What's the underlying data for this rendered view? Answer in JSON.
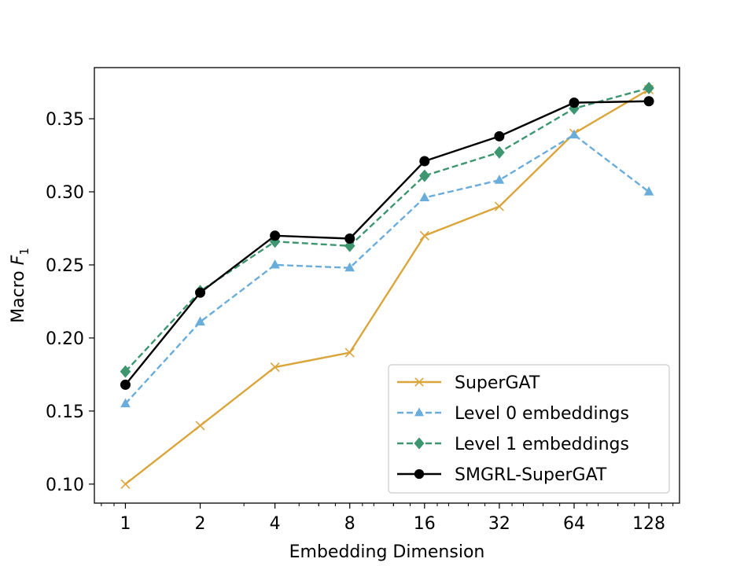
{
  "chart_data": {
    "type": "line",
    "title": "",
    "xlabel": "Embedding Dimension",
    "ylabel": "Macro",
    "ylabel_symbol": "F",
    "ylabel_subscript": "1",
    "x_scale": "log2",
    "categories": [
      "1",
      "2",
      "4",
      "8",
      "16",
      "32",
      "64",
      "128"
    ],
    "x": [
      1,
      2,
      4,
      8,
      16,
      32,
      64,
      128
    ],
    "xlim": [
      0.75,
      170
    ],
    "ylim": [
      0.087,
      0.385
    ],
    "yticks": [
      0.1,
      0.15,
      0.2,
      0.25,
      0.3,
      0.35
    ],
    "ytick_labels": [
      "0.10",
      "0.15",
      "0.20",
      "0.25",
      "0.30",
      "0.35"
    ],
    "grid": false,
    "legend_position": "lower-right",
    "series": [
      {
        "name": "SuperGAT",
        "color": "#DAA53A",
        "linestyle": "solid",
        "marker": "x",
        "values": [
          0.1,
          0.14,
          0.18,
          0.19,
          0.27,
          0.29,
          0.34,
          0.37
        ]
      },
      {
        "name": "Level 0 embeddings",
        "color": "#6AADDB",
        "linestyle": "dashed",
        "marker": "triangle",
        "values": [
          0.155,
          0.211,
          0.25,
          0.248,
          0.296,
          0.308,
          0.339,
          0.3
        ]
      },
      {
        "name": "Level 1 embeddings",
        "color": "#3D9670",
        "linestyle": "dashed",
        "marker": "diamond",
        "values": [
          0.177,
          0.232,
          0.266,
          0.263,
          0.311,
          0.327,
          0.357,
          0.371
        ]
      },
      {
        "name": "SMGRL-SuperGAT",
        "color": "#000000",
        "linestyle": "solid",
        "marker": "circle",
        "values": [
          0.168,
          0.231,
          0.27,
          0.268,
          0.321,
          0.338,
          0.361,
          0.362
        ]
      }
    ]
  }
}
